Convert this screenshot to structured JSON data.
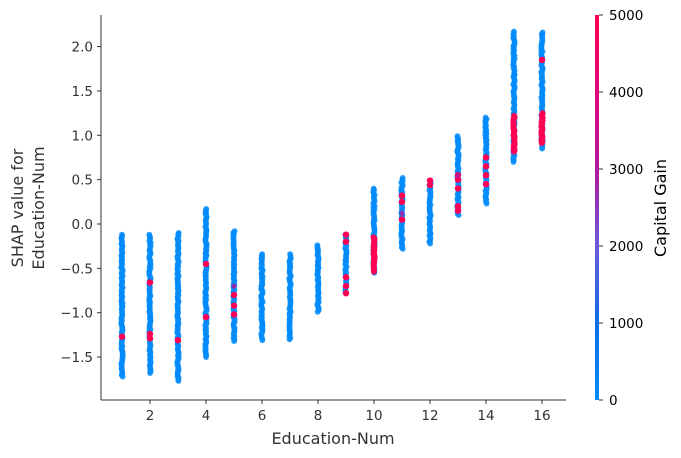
{
  "chart_data": {
    "type": "scatter",
    "title": "",
    "xlabel": "Education-Num",
    "ylabel_lines": [
      "SHAP value for",
      "Education-Num"
    ],
    "xlim": [
      0.3,
      16.8
    ],
    "ylim": [
      -1.95,
      2.35
    ],
    "x_ticks": [
      2,
      4,
      6,
      8,
      10,
      12,
      14,
      16
    ],
    "y_ticks": [
      2.0,
      1.5,
      1.0,
      0.5,
      0.0,
      -0.5,
      -1.0,
      -1.5
    ],
    "y_tick_labels": [
      "2.0",
      "1.5",
      "1.0",
      "0.5",
      "0.0",
      "−0.5",
      "−1.0",
      "−1.5"
    ],
    "grid": false,
    "colorbar": {
      "label": "Capital Gain",
      "range": [
        0,
        5000
      ],
      "ticks": [
        0,
        1000,
        2000,
        3000,
        4000,
        5000
      ],
      "colors": [
        "#008bfb",
        "#0d6ee8",
        "#6a5ad8",
        "#b81ea4",
        "#e0077d",
        "#ff0052"
      ]
    },
    "colors": {
      "low": "#008bfb",
      "high": "#ff0052",
      "mid": "#b0189f"
    },
    "columns": [
      {
        "x": 1,
        "ymin": -1.72,
        "ymax": -0.12,
        "high_points": [
          -1.27
        ]
      },
      {
        "x": 2,
        "ymin": -1.68,
        "ymax": -0.12,
        "high_points": [
          -0.66,
          -1.24,
          -1.29
        ]
      },
      {
        "x": 3,
        "ymin": -1.77,
        "ymax": -0.1,
        "high_points": [
          -1.31
        ]
      },
      {
        "x": 4,
        "ymin": -1.5,
        "ymax": 0.17,
        "high_points": [
          -0.45,
          -1.05
        ]
      },
      {
        "x": 5,
        "ymin": -1.32,
        "ymax": -0.08,
        "high_points": [
          -0.8,
          -0.92,
          -1.02
        ]
      },
      {
        "x": 6,
        "ymin": -1.31,
        "ymax": -0.34,
        "high_points": []
      },
      {
        "x": 7,
        "ymin": -1.3,
        "ymax": -0.34,
        "high_points": []
      },
      {
        "x": 8,
        "ymin": -0.99,
        "ymax": -0.24,
        "high_points": []
      },
      {
        "x": 9,
        "ymin": -0.78,
        "ymax": -0.12,
        "high_points": [
          -0.12,
          -0.2,
          -0.6,
          -0.7,
          -0.78
        ]
      },
      {
        "x": 10,
        "ymin": -0.55,
        "ymax": 0.4,
        "high_band": [
          -0.55,
          -0.15
        ]
      },
      {
        "x": 11,
        "ymin": -0.28,
        "ymax": 0.52,
        "high_points": [
          0.32,
          0.25,
          0.05
        ]
      },
      {
        "x": 12,
        "ymin": -0.22,
        "ymax": 0.49,
        "high_points": [
          0.49,
          0.44
        ]
      },
      {
        "x": 13,
        "ymin": 0.1,
        "ymax": 0.99,
        "high_points": [
          0.55,
          0.5,
          0.4,
          0.2,
          0.15
        ]
      },
      {
        "x": 14,
        "ymin": 0.23,
        "ymax": 1.2,
        "high_points": [
          0.75,
          0.65,
          0.55,
          0.45
        ]
      },
      {
        "x": 15,
        "ymin": 0.7,
        "ymax": 2.17,
        "high_band": [
          0.8,
          1.22
        ]
      },
      {
        "x": 16,
        "ymin": 0.85,
        "ymax": 2.16,
        "high_band": [
          0.9,
          1.25
        ],
        "high_points": [
          1.85
        ]
      }
    ]
  }
}
